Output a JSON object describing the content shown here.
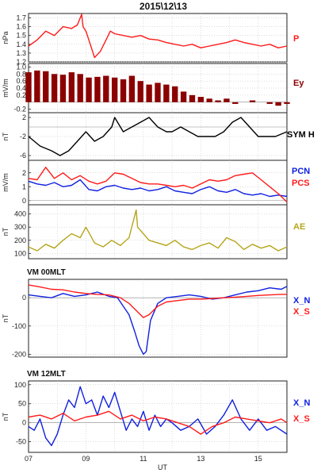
{
  "title": "2015\\12\\13",
  "x_tick_labels": [
    "07",
    "09",
    "11",
    "13",
    "15"
  ],
  "x_label": "UT",
  "colors": {
    "red": "#ff1a1a",
    "darkred": "#8b0000",
    "black": "#000000",
    "blue": "#1020e0",
    "olive": "#b5a51a"
  },
  "chart_data": [
    {
      "type": "line",
      "panel": "P",
      "ylabel": "nPa",
      "ylim": [
        1.2,
        1.75
      ],
      "yticks": [
        "1.7",
        "1.6",
        "1.5",
        "1.4",
        "1.3",
        "1.2"
      ],
      "series": [
        {
          "name": "P",
          "color": "#ff1a1a",
          "x": [
            7.0,
            7.3,
            7.6,
            7.9,
            8.2,
            8.5,
            8.7,
            8.85,
            8.9,
            9.0,
            9.15,
            9.3,
            9.5,
            9.7,
            9.85,
            10.0,
            10.3,
            10.6,
            10.9,
            11.2,
            11.5,
            11.8,
            12.1,
            12.4,
            12.7,
            13.0,
            13.3,
            13.6,
            13.9,
            14.2,
            14.5,
            14.8,
            15.1,
            15.4,
            15.7,
            16.0
          ],
          "y": [
            1.38,
            1.45,
            1.55,
            1.5,
            1.6,
            1.58,
            1.62,
            1.74,
            1.6,
            1.55,
            1.4,
            1.25,
            1.32,
            1.45,
            1.55,
            1.52,
            1.5,
            1.48,
            1.5,
            1.46,
            1.45,
            1.42,
            1.4,
            1.38,
            1.4,
            1.36,
            1.38,
            1.4,
            1.42,
            1.45,
            1.42,
            1.4,
            1.38,
            1.4,
            1.36,
            1.38
          ]
        }
      ]
    },
    {
      "type": "bar",
      "panel": "Ey",
      "ylabel": "mV/m",
      "ylim": [
        -0.3,
        1.1
      ],
      "yticks": [
        "1.0",
        "0.8",
        "0.6",
        "0.4",
        "0.2",
        "-0.2"
      ],
      "series": [
        {
          "name": "Ey",
          "color": "#8b0000",
          "x": [
            7.0,
            7.3,
            7.6,
            7.9,
            8.2,
            8.5,
            8.8,
            9.1,
            9.4,
            9.7,
            10.0,
            10.3,
            10.6,
            10.9,
            11.2,
            11.5,
            11.8,
            12.1,
            12.4,
            12.7,
            13.0,
            13.3,
            13.6,
            13.9,
            14.2,
            14.5,
            14.8,
            15.1,
            15.4,
            15.7,
            16.0
          ],
          "y": [
            0.85,
            0.9,
            0.88,
            0.8,
            0.78,
            0.85,
            0.8,
            0.7,
            0.72,
            0.75,
            0.7,
            0.65,
            0.75,
            0.6,
            0.5,
            0.55,
            0.5,
            0.45,
            0.3,
            0.2,
            0.15,
            0.1,
            0.05,
            0.1,
            -0.05,
            0.0,
            0.05,
            0.0,
            -0.05,
            -0.1,
            -0.05
          ]
        }
      ]
    },
    {
      "type": "line",
      "panel": "SYM H",
      "ylabel": "nT",
      "ylim": [
        -7,
        3
      ],
      "yticks": [
        "2",
        "-2",
        "-6"
      ],
      "series": [
        {
          "name": "SYM H",
          "color": "#000000",
          "x": [
            7.0,
            7.4,
            7.8,
            8.1,
            8.4,
            8.7,
            9.0,
            9.3,
            9.6,
            9.9,
            10.0,
            10.3,
            10.6,
            10.9,
            11.2,
            11.5,
            11.8,
            12.0,
            12.3,
            12.6,
            12.9,
            13.2,
            13.5,
            13.8,
            14.1,
            14.4,
            14.7,
            15.0,
            15.3,
            15.6,
            16.0
          ],
          "y": [
            -2,
            -4,
            -5,
            -6,
            -5,
            -3,
            -1,
            -3,
            -2,
            0,
            2,
            -1,
            0,
            1,
            2,
            0,
            -1,
            -1,
            0,
            -1,
            -2,
            -2,
            -2,
            -1,
            1,
            2,
            0,
            -2,
            -2,
            -2,
            -1
          ]
        }
      ]
    },
    {
      "type": "line",
      "panel": "PCN/PCS",
      "ylabel": "mV/m",
      "ylim": [
        -0.3,
        2.9
      ],
      "yticks": [
        "2",
        "1",
        "0"
      ],
      "series": [
        {
          "name": "PCN",
          "color": "#1020e0",
          "x": [
            7.0,
            7.3,
            7.6,
            7.9,
            8.2,
            8.5,
            8.8,
            9.1,
            9.4,
            9.7,
            10.0,
            10.3,
            10.6,
            10.9,
            11.2,
            11.5,
            11.8,
            12.1,
            12.4,
            12.7,
            13.0,
            13.3,
            13.6,
            13.9,
            14.2,
            14.5,
            14.8,
            15.1,
            15.4,
            15.7,
            16.0
          ],
          "y": [
            1.4,
            1.2,
            1.1,
            1.3,
            1.0,
            1.1,
            1.5,
            0.8,
            0.7,
            1.0,
            1.1,
            0.9,
            0.8,
            0.9,
            0.7,
            0.8,
            1.0,
            0.7,
            0.6,
            0.5,
            0.8,
            1.0,
            0.7,
            0.6,
            0.8,
            0.5,
            0.4,
            0.5,
            0.3,
            0.4,
            0.3
          ]
        },
        {
          "name": "PCS",
          "color": "#ff1a1a",
          "x": [
            7.0,
            7.3,
            7.6,
            7.9,
            8.2,
            8.5,
            8.8,
            9.1,
            9.4,
            9.7,
            10.0,
            10.3,
            10.6,
            10.9,
            11.2,
            11.5,
            11.8,
            12.1,
            12.4,
            12.7,
            13.0,
            13.3,
            13.6,
            13.9,
            14.2,
            14.5,
            14.8,
            15.1,
            15.4,
            15.7,
            16.0
          ],
          "y": [
            1.6,
            1.5,
            2.4,
            1.6,
            2.0,
            1.5,
            1.8,
            1.4,
            1.2,
            1.4,
            2.0,
            1.9,
            1.6,
            1.3,
            1.2,
            1.2,
            1.1,
            1.0,
            1.1,
            0.9,
            1.2,
            1.5,
            1.4,
            1.5,
            1.8,
            1.9,
            2.0,
            1.5,
            1.0,
            0.5,
            -0.1
          ]
        }
      ]
    },
    {
      "type": "line",
      "panel": "AE",
      "ylabel": "nT",
      "ylim": [
        60,
        470
      ],
      "yticks": [
        "400",
        "300",
        "200",
        "100"
      ],
      "series": [
        {
          "name": "AE",
          "color": "#b5a51a",
          "x": [
            7.0,
            7.3,
            7.6,
            7.9,
            8.2,
            8.5,
            8.8,
            9.0,
            9.3,
            9.6,
            9.9,
            10.2,
            10.5,
            10.75,
            10.8,
            11.0,
            11.2,
            11.5,
            11.8,
            12.1,
            12.4,
            12.7,
            13.0,
            13.3,
            13.6,
            13.9,
            14.2,
            14.5,
            14.8,
            15.1,
            15.4,
            15.7,
            16.0
          ],
          "y": [
            150,
            120,
            170,
            140,
            200,
            250,
            220,
            300,
            180,
            150,
            200,
            160,
            220,
            430,
            300,
            250,
            200,
            180,
            160,
            200,
            150,
            130,
            160,
            180,
            140,
            220,
            190,
            130,
            170,
            140,
            160,
            120,
            150
          ]
        }
      ]
    },
    {
      "type": "line",
      "panel": "VM 00MLT",
      "title": "VM 00MLT",
      "ylabel": "nT",
      "ylim": [
        -210,
        65
      ],
      "yticks": [
        "0",
        "-100",
        "-200"
      ],
      "series": [
        {
          "name": "X_N",
          "color": "#1020e0",
          "x": [
            7.0,
            7.4,
            7.8,
            8.2,
            8.6,
            9.0,
            9.4,
            9.8,
            10.1,
            10.3,
            10.5,
            10.7,
            10.85,
            11.0,
            11.1,
            11.25,
            11.5,
            11.8,
            12.2,
            12.6,
            13.0,
            13.4,
            13.8,
            14.2,
            14.6,
            15.0,
            15.4,
            15.8,
            16.0
          ],
          "y": [
            10,
            5,
            0,
            15,
            5,
            10,
            20,
            5,
            0,
            -30,
            -60,
            -120,
            -170,
            -200,
            -190,
            -80,
            -20,
            0,
            5,
            10,
            5,
            -5,
            0,
            10,
            20,
            25,
            35,
            30,
            40
          ]
        },
        {
          "name": "X_S",
          "color": "#ff1a1a",
          "x": [
            7.0,
            7.4,
            7.8,
            8.2,
            8.6,
            9.0,
            9.4,
            9.8,
            10.2,
            10.5,
            10.8,
            11.0,
            11.2,
            11.5,
            11.8,
            12.2,
            12.6,
            13.0,
            13.4,
            13.8,
            14.2,
            14.6,
            15.0,
            15.4,
            15.8,
            16.0
          ],
          "y": [
            45,
            38,
            30,
            28,
            20,
            15,
            12,
            10,
            0,
            -20,
            -50,
            -70,
            -60,
            -30,
            -15,
            -10,
            -5,
            -5,
            -3,
            0,
            2,
            5,
            8,
            10,
            12,
            12
          ]
        }
      ]
    },
    {
      "type": "line",
      "panel": "VM 12MLT",
      "title": "VM 12MLT",
      "ylabel": "nT",
      "ylim": [
        -78,
        110
      ],
      "yticks": [
        "100",
        "50",
        "0",
        "-50"
      ],
      "series": [
        {
          "name": "X_N",
          "color": "#1020e0",
          "x": [
            7.0,
            7.2,
            7.4,
            7.6,
            7.8,
            8.0,
            8.2,
            8.4,
            8.6,
            8.8,
            9.0,
            9.2,
            9.4,
            9.6,
            9.8,
            10.0,
            10.2,
            10.4,
            10.6,
            10.8,
            11.0,
            11.2,
            11.4,
            11.6,
            11.8,
            12.0,
            12.3,
            12.6,
            12.9,
            13.2,
            13.5,
            13.8,
            14.1,
            14.4,
            14.7,
            15.0,
            15.3,
            15.6,
            16.0
          ],
          "y": [
            -10,
            -20,
            10,
            -40,
            -60,
            -30,
            20,
            60,
            40,
            95,
            50,
            60,
            20,
            70,
            40,
            80,
            30,
            -20,
            10,
            -10,
            30,
            -20,
            20,
            -10,
            10,
            0,
            -20,
            -10,
            10,
            -30,
            -10,
            20,
            60,
            10,
            -20,
            10,
            -20,
            -10,
            -30
          ]
        },
        {
          "name": "X_S",
          "color": "#ff1a1a",
          "x": [
            7.0,
            7.4,
            7.8,
            8.2,
            8.6,
            9.0,
            9.4,
            9.8,
            10.2,
            10.6,
            11.0,
            11.4,
            11.8,
            12.2,
            12.6,
            13.0,
            13.4,
            13.8,
            14.2,
            14.6,
            15.0,
            15.4,
            15.8,
            16.0
          ],
          "y": [
            15,
            20,
            10,
            25,
            5,
            15,
            20,
            30,
            10,
            20,
            5,
            15,
            10,
            0,
            -10,
            -30,
            -10,
            0,
            15,
            10,
            5,
            0,
            10,
            0
          ]
        }
      ]
    }
  ],
  "legend_labels": {
    "p": "P",
    "ey": "Ey",
    "symh": "SYM H",
    "pcn": "PCN",
    "pcs": "PCS",
    "ae": "AE",
    "xn1": "X_N",
    "xs1": "X_S",
    "xn2": "X_N",
    "xs2": "X_S"
  }
}
